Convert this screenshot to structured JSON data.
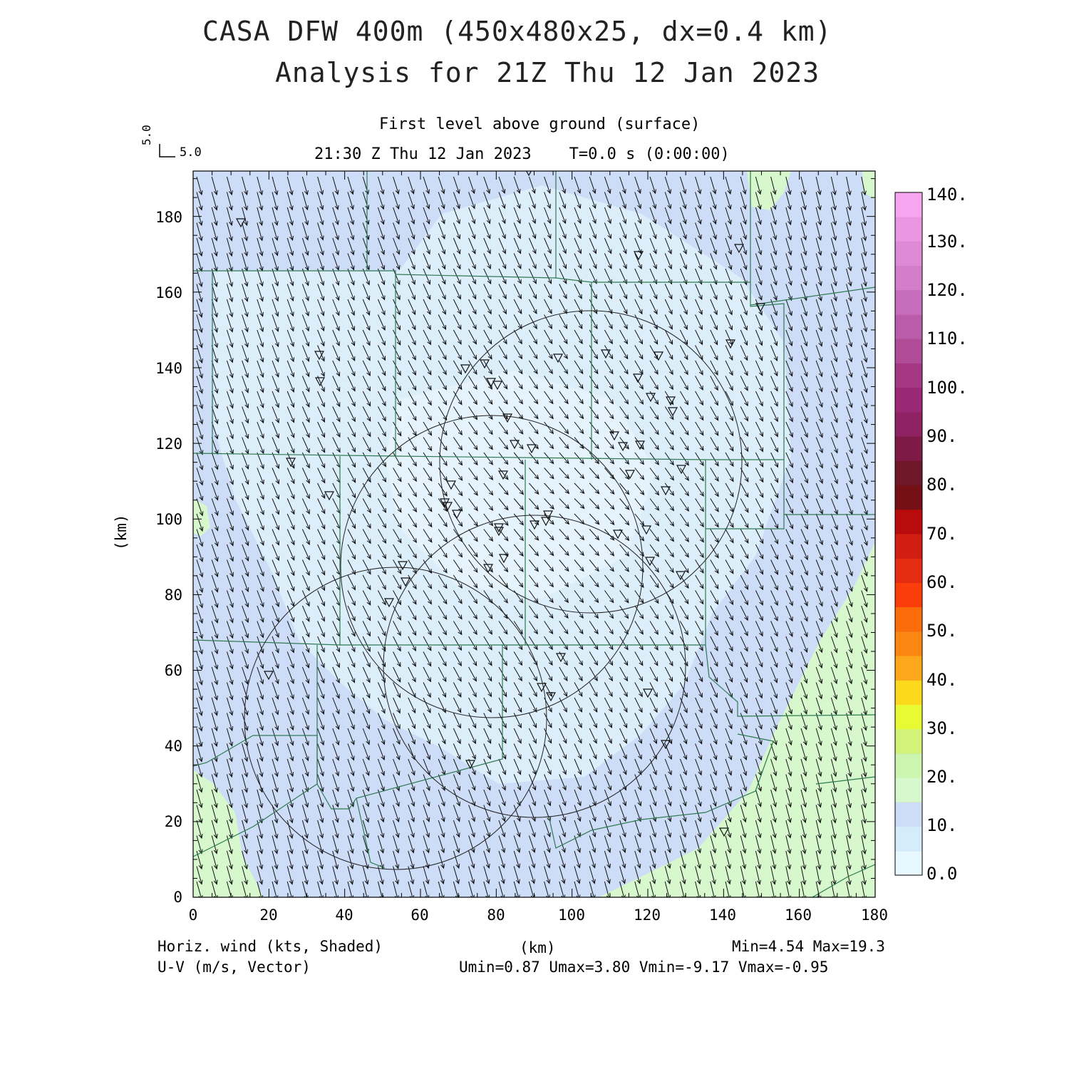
{
  "title": {
    "line1": "CASA DFW 400m (450x480x25, dx=0.4 km)",
    "line2": "Analysis for 21Z Thu 12 Jan 2023"
  },
  "subtitle": {
    "level": "First level above ground (surface)",
    "time": "21:30 Z Thu 12 Jan 2023    T=0.0 s (0:00:00)"
  },
  "vector_key": {
    "u": "5.0",
    "v": "5.0"
  },
  "axes": {
    "x_label": "(km)",
    "y_label": "(km)",
    "x_ticks": [
      "0",
      "20",
      "40",
      "60",
      "80",
      "100",
      "120",
      "140",
      "160",
      "180"
    ],
    "y_ticks": [
      "0",
      "20",
      "40",
      "60",
      "80",
      "100",
      "120",
      "140",
      "160",
      "180"
    ]
  },
  "colorbar": {
    "labels": [
      "0.0",
      "10.",
      "20.",
      "30.",
      "40.",
      "50.",
      "60.",
      "70.",
      "80.",
      "90.",
      "100.",
      "110.",
      "120.",
      "130.",
      "140."
    ],
    "colors": [
      "#e8f8ff",
      "#d4ecfb",
      "#cddcf7",
      "#d6f8cc",
      "#ccf6b0",
      "#d2f27a",
      "#e7fa33",
      "#fdd91d",
      "#fda81b",
      "#fb8712",
      "#fb6d0a",
      "#fb3d0c",
      "#e52b10",
      "#d21d12",
      "#b80b0b",
      "#741016",
      "#6f1628",
      "#7d1a45",
      "#8f2263",
      "#9b2875",
      "#a63783",
      "#b04b98",
      "#bb5cab",
      "#c76dbd",
      "#d37dcb",
      "#df8ad7",
      "#ea96e2",
      "#f6a5f1"
    ],
    "unit_note": "Horiz. wind (kts, Shaded)"
  },
  "footer": {
    "left1": "Horiz. wind (kts, Shaded)",
    "left2": "U-V (m/s, Vector)",
    "center": "(km)",
    "right1": "Min=4.54 Max=19.3",
    "right2": "Umin=0.87 Umax=3.80 Vmin=-9.17 Vmax=-0.95"
  },
  "map_data": {
    "x_range_km": [
      0,
      180
    ],
    "y_range_km": [
      0,
      192
    ],
    "field": "horizontal wind speed (kts)",
    "min": 4.54,
    "max": 19.3,
    "wind_direction": "from north-northwest (vectors pointing south-southeast)",
    "radar_range_rings": 4,
    "station_markers": "inverted triangles"
  },
  "colors": {
    "plot_bg": "#cddcf7",
    "light_region": "#ddeefb",
    "green_region": "#d6f8cc",
    "county_lines": "#2f7a52",
    "arrows": "#111111"
  }
}
